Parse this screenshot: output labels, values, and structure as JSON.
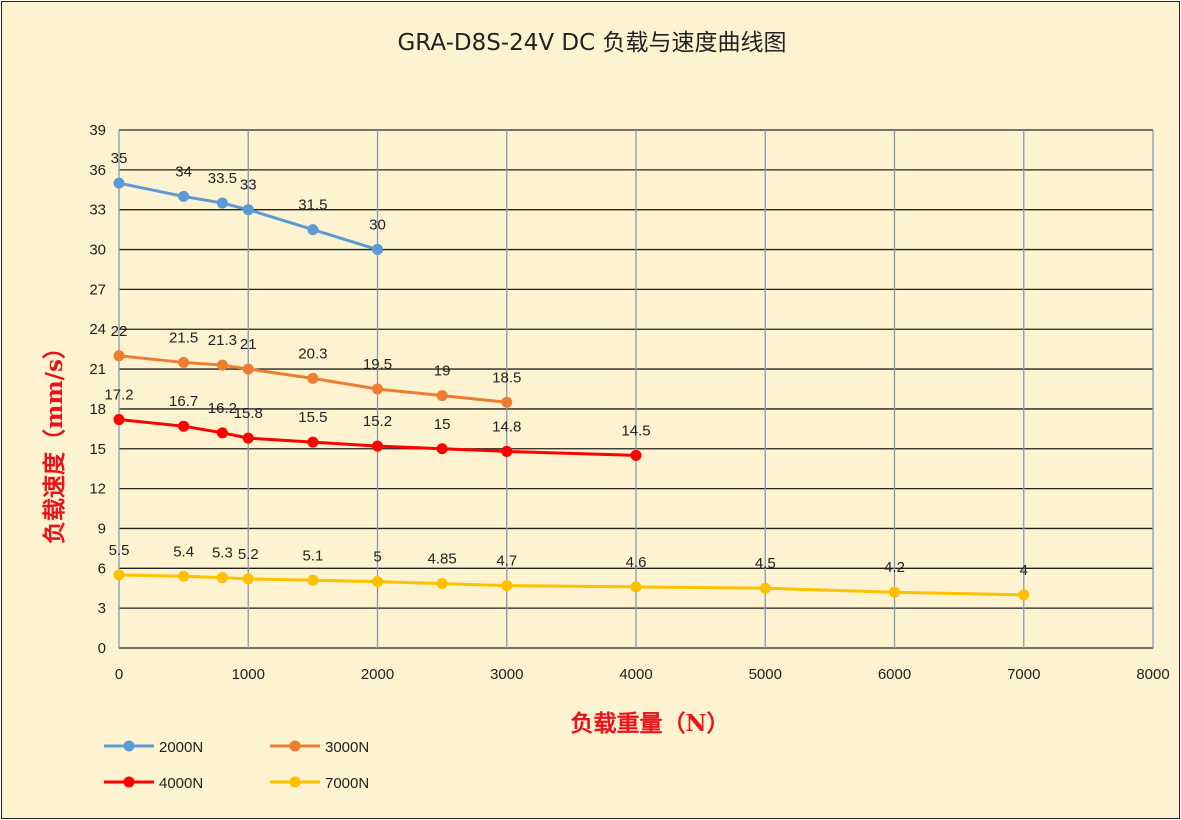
{
  "chart_data": {
    "type": "line",
    "title": "GRA-D8S-24V DC 负载与速度曲线图",
    "xlabel": "负载重量（N）",
    "ylabel": "负载速度（mm/s）",
    "xlim": [
      0,
      8000
    ],
    "ylim": [
      0,
      39
    ],
    "x_ticks": [
      0,
      1000,
      2000,
      3000,
      4000,
      5000,
      6000,
      7000,
      8000
    ],
    "y_ticks": [
      0,
      3,
      6,
      9,
      12,
      15,
      18,
      21,
      24,
      27,
      30,
      33,
      36,
      39
    ],
    "grid": true,
    "legend_position": "bottom-left",
    "series": [
      {
        "name": "2000N",
        "color": "#5b9bd5",
        "x": [
          0,
          500,
          800,
          1000,
          1500,
          2000
        ],
        "y": [
          35,
          34,
          33.5,
          33,
          31.5,
          30
        ]
      },
      {
        "name": "3000N",
        "color": "#ed7d31",
        "x": [
          0,
          500,
          800,
          1000,
          1500,
          2000,
          2500,
          3000
        ],
        "y": [
          22,
          21.5,
          21.3,
          21,
          20.3,
          19.5,
          19,
          18.5
        ]
      },
      {
        "name": "4000N",
        "color": "#ff0000",
        "x": [
          0,
          500,
          800,
          1000,
          1500,
          2000,
          2500,
          3000,
          4000
        ],
        "y": [
          17.2,
          16.7,
          16.2,
          15.8,
          15.5,
          15.2,
          15,
          14.8,
          14.5
        ]
      },
      {
        "name": "7000N",
        "color": "#ffc000",
        "x": [
          0,
          500,
          800,
          1000,
          1500,
          2000,
          2500,
          3000,
          4000,
          5000,
          6000,
          7000
        ],
        "y": [
          5.5,
          5.4,
          5.3,
          5.2,
          5.1,
          5,
          4.85,
          4.7,
          4.6,
          4.5,
          4.2,
          4
        ]
      }
    ]
  }
}
